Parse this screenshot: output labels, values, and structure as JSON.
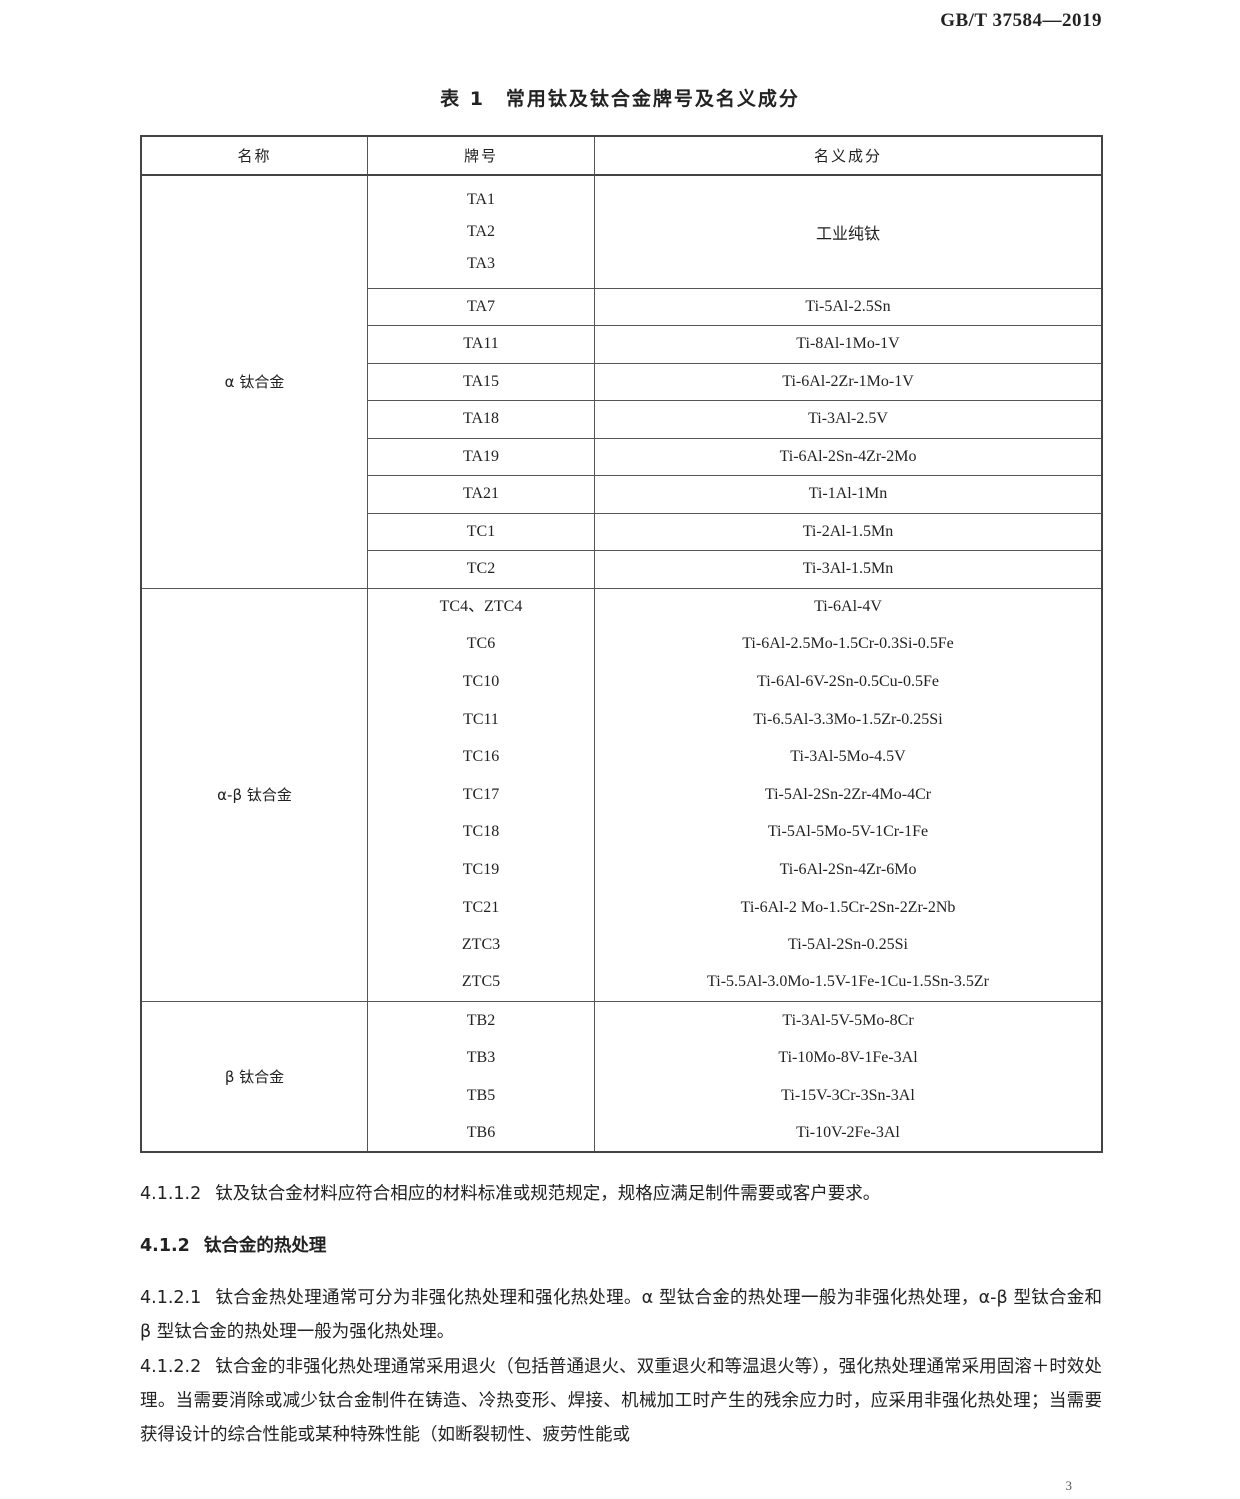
{
  "header": {
    "standard_no": "GB/T 37584—2019"
  },
  "table": {
    "caption": "表 1　常用钛及钛合金牌号及名义成分",
    "columns": [
      "名称",
      "牌号",
      "名义成分"
    ],
    "groups": [
      {
        "name": "α 钛合金",
        "row_lines": true,
        "rows": [
          {
            "grade": [
              "TA1",
              "TA2",
              "TA3"
            ],
            "comp": "工业纯钛"
          },
          {
            "grade": [
              "TA7"
            ],
            "comp": "Ti-5Al-2.5Sn"
          },
          {
            "grade": [
              "TA11"
            ],
            "comp": "Ti-8Al-1Mo-1V"
          },
          {
            "grade": [
              "TA15"
            ],
            "comp": "Ti-6Al-2Zr-1Mo-1V"
          },
          {
            "grade": [
              "TA18"
            ],
            "comp": "Ti-3Al-2.5V"
          },
          {
            "grade": [
              "TA19"
            ],
            "comp": "Ti-6Al-2Sn-4Zr-2Mo"
          },
          {
            "grade": [
              "TA21"
            ],
            "comp": "Ti-1Al-1Mn"
          },
          {
            "grade": [
              "TC1"
            ],
            "comp": "Ti-2Al-1.5Mn"
          },
          {
            "grade": [
              "TC2"
            ],
            "comp": "Ti-3Al-1.5Mn"
          }
        ]
      },
      {
        "name": "α-β 钛合金",
        "row_lines": false,
        "rows": [
          {
            "grade": [
              "TC4、ZTC4"
            ],
            "comp": "Ti-6Al-4V"
          },
          {
            "grade": [
              "TC6"
            ],
            "comp": "Ti-6Al-2.5Mo-1.5Cr-0.3Si-0.5Fe"
          },
          {
            "grade": [
              "TC10"
            ],
            "comp": "Ti-6Al-6V-2Sn-0.5Cu-0.5Fe"
          },
          {
            "grade": [
              "TC11"
            ],
            "comp": "Ti-6.5Al-3.3Mo-1.5Zr-0.25Si"
          },
          {
            "grade": [
              "TC16"
            ],
            "comp": "Ti-3Al-5Mo-4.5V"
          },
          {
            "grade": [
              "TC17"
            ],
            "comp": "Ti-5Al-2Sn-2Zr-4Mo-4Cr"
          },
          {
            "grade": [
              "TC18"
            ],
            "comp": "Ti-5Al-5Mo-5V-1Cr-1Fe"
          },
          {
            "grade": [
              "TC19"
            ],
            "comp": "Ti-6Al-2Sn-4Zr-6Mo"
          },
          {
            "grade": [
              "TC21"
            ],
            "comp": "Ti-6Al-2 Mo-1.5Cr-2Sn-2Zr-2Nb"
          },
          {
            "grade": [
              "ZTC3"
            ],
            "comp": "Ti-5Al-2Sn-0.25Si"
          },
          {
            "grade": [
              "ZTC5"
            ],
            "comp": "Ti-5.5Al-3.0Mo-1.5V-1Fe-1Cu-1.5Sn-3.5Zr"
          }
        ]
      },
      {
        "name": "β 钛合金",
        "row_lines": false,
        "rows": [
          {
            "grade": [
              "TB2"
            ],
            "comp": "Ti-3Al-5V-5Mo-8Cr"
          },
          {
            "grade": [
              "TB3"
            ],
            "comp": "Ti-10Mo-8V-1Fe-3Al"
          },
          {
            "grade": [
              "TB5"
            ],
            "comp": "Ti-15V-3Cr-3Sn-3Al"
          },
          {
            "grade": [
              "TB6"
            ],
            "comp": "Ti-10V-2Fe-3Al"
          }
        ]
      }
    ]
  },
  "body": {
    "p1": {
      "num": "4.1.1.2",
      "text": "钛及钛合金材料应符合相应的材料标准或规范规定，规格应满足制件需要或客户要求。"
    },
    "h": {
      "num": "4.1.2",
      "text": "钛合金的热处理"
    },
    "p2": {
      "num": "4.1.2.1",
      "text": "钛合金热处理通常可分为非强化热处理和强化热处理。α 型钛合金的热处理一般为非强化热处理，α-β 型钛合金和 β 型钛合金的热处理一般为强化热处理。"
    },
    "p3": {
      "num": "4.1.2.2",
      "text": "钛合金的非强化热处理通常采用退火（包括普通退火、双重退火和等温退火等），强化热处理通常采用固溶＋时效处理。当需要消除或减少钛合金制件在铸造、冷热变形、焊接、机械加工时产生的残余应力时，应采用非强化热处理；当需要获得设计的综合性能或某种特殊性能（如断裂韧性、疲劳性能或"
    }
  },
  "footer": {
    "page": "3"
  }
}
